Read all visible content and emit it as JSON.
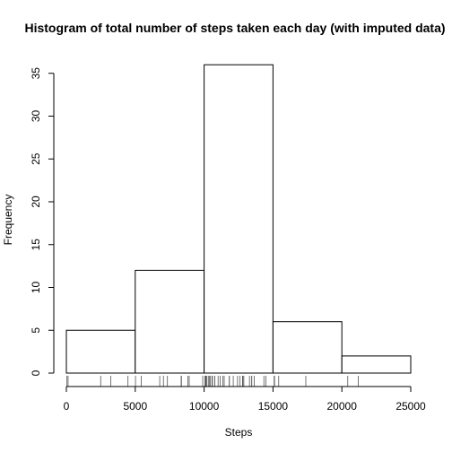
{
  "chart_data": {
    "type": "bar",
    "title": "Histogram of total number of steps taken each day (with imputed data)",
    "xlabel": "Steps",
    "ylabel": "Frequency",
    "bins": [
      {
        "from": 0,
        "to": 5000,
        "count": 5
      },
      {
        "from": 5000,
        "to": 10000,
        "count": 12
      },
      {
        "from": 10000,
        "to": 15000,
        "count": 36
      },
      {
        "from": 15000,
        "to": 20000,
        "count": 6
      },
      {
        "from": 20000,
        "to": 25000,
        "count": 2
      }
    ],
    "xlim": [
      0,
      25000
    ],
    "ylim": [
      0,
      36
    ],
    "x_ticks": [
      "0",
      "5000",
      "10000",
      "15000",
      "20000",
      "25000"
    ],
    "y_ticks": [
      "0",
      "5",
      "10",
      "15",
      "20",
      "25",
      "30",
      "35"
    ],
    "rug": [
      41,
      126,
      2492,
      3219,
      4472,
      5018,
      5441,
      6778,
      7047,
      7336,
      8334,
      8355,
      8821,
      8918,
      9900,
      10056,
      10119,
      10139,
      10183,
      10304,
      10395,
      10439,
      10571,
      10600,
      10765,
      10766,
      11015,
      11162,
      11352,
      11458,
      11829,
      11834,
      12116,
      12426,
      12608,
      12787,
      12811,
      12883,
      13294,
      13452,
      13460,
      13646,
      14339,
      14478,
      15084,
      15098,
      15110,
      15414,
      17382,
      20427,
      21194
    ],
    "grid": false,
    "legend": "none"
  }
}
